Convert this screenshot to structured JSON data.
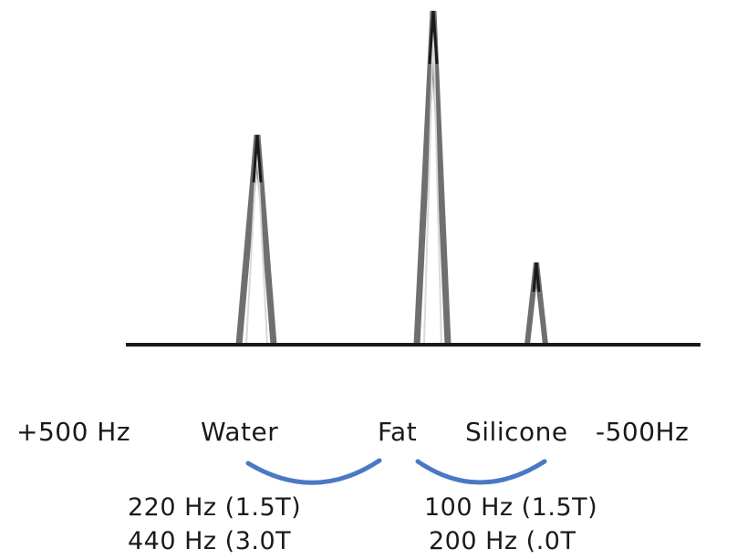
{
  "axis": {
    "left_label": "+500 Hz",
    "right_label": "-500Hz"
  },
  "peaks": [
    {
      "label": "Water",
      "relative_height": 0.58
    },
    {
      "label": "Fat",
      "relative_height": 1.0
    },
    {
      "label": "Silicone",
      "relative_height": 0.24
    }
  ],
  "shifts": {
    "water_fat": {
      "line1": "220 Hz (1.5T)",
      "line2": "440 Hz (3.0T"
    },
    "fat_silicone": {
      "line1": "100 Hz (1.5T)",
      "line2": "200 Hz (.0T"
    }
  },
  "colors": {
    "peak_outline": "#6f6f6f",
    "peak_tip": "#1a1a1a",
    "baseline": "#1a1a1a",
    "brace": "#4a78c4",
    "text": "#1a1a1a"
  }
}
